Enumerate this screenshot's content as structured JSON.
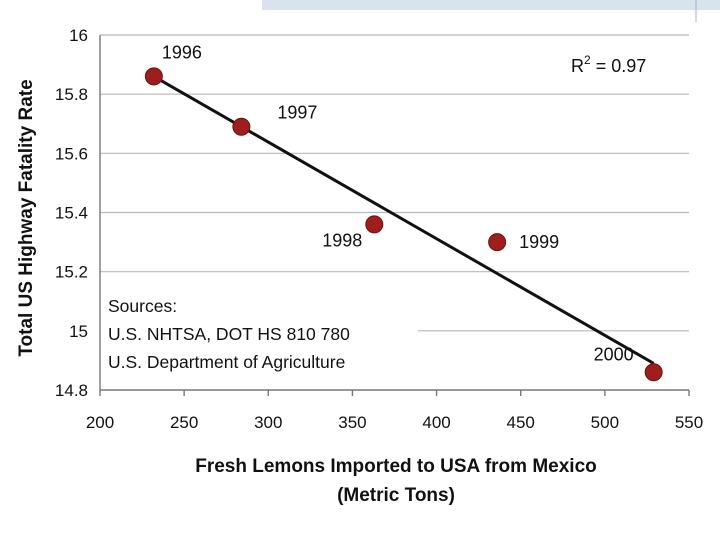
{
  "chart_data": {
    "type": "scatter",
    "title": "",
    "xlabel_line1": "Fresh Lemons Imported to USA from Mexico",
    "xlabel_line2": "(Metric Tons)",
    "ylabel": "Total US Highway Fatality Rate",
    "xlim": [
      200,
      550
    ],
    "ylim": [
      14.8,
      16
    ],
    "xticks": [
      200,
      250,
      300,
      350,
      400,
      450,
      500,
      550
    ],
    "xtick_labels": [
      "200",
      "250",
      "300",
      "350",
      "400",
      "450",
      "500",
      "550"
    ],
    "yticks": [
      14.8,
      15,
      15.2,
      15.4,
      15.6,
      15.8,
      16
    ],
    "ytick_labels": [
      "14.8",
      "15",
      "15.2",
      "15.4",
      "15.6",
      "15.8",
      "16"
    ],
    "points": [
      {
        "label": "1996",
        "x": 232,
        "y": 15.86
      },
      {
        "label": "1997",
        "x": 284,
        "y": 15.69
      },
      {
        "label": "1998",
        "x": 363,
        "y": 15.36
      },
      {
        "label": "1999",
        "x": 436,
        "y": 15.3
      },
      {
        "label": "2000",
        "x": 529,
        "y": 14.86
      }
    ],
    "trendline": {
      "x": [
        232,
        529
      ],
      "y": [
        15.86,
        14.89
      ]
    },
    "r_squared_label": "R",
    "r_squared_exp": "2",
    "r_squared_value": " = 0.97",
    "grid": true,
    "sources": {
      "heading": "Sources:",
      "lines": [
        "U.S. NHTSA, DOT HS 810 780",
        "U.S. Department of Agriculture"
      ]
    },
    "colors": {
      "point": "#9e1e1e",
      "trend": "#111111",
      "grid": "#b9b9b9"
    }
  }
}
